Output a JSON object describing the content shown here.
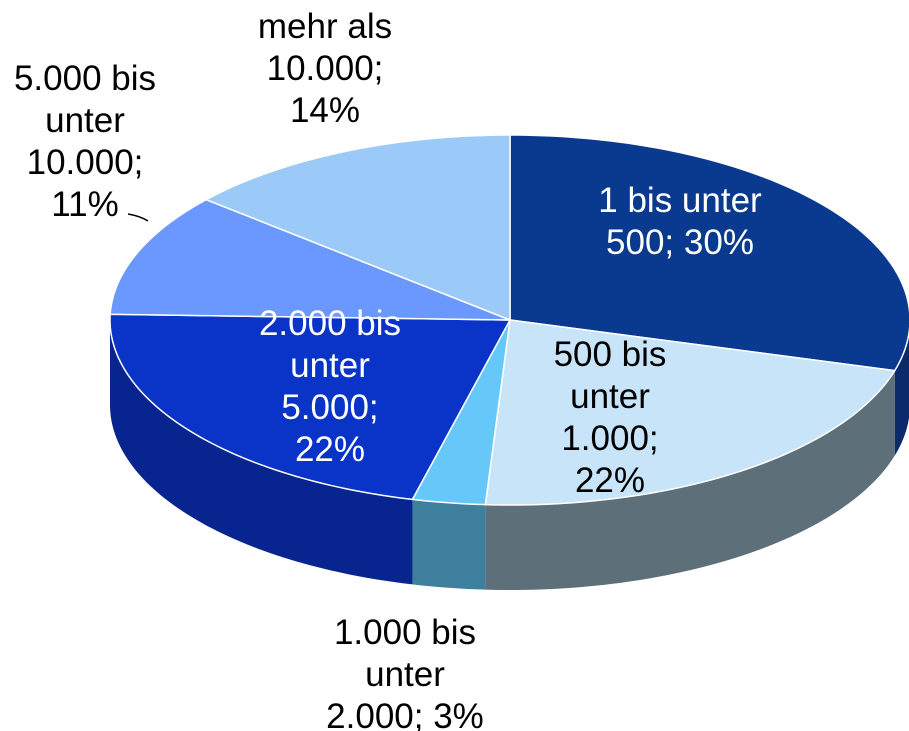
{
  "chart_data": {
    "type": "pie3d",
    "categories": [
      "1 bis unter 500;",
      "500 bis unter 1.000;",
      "1.000 bis unter 2.000;",
      "2.000 bis unter 5.000;",
      "5.000 bis unter 10.000;",
      "mehr als 10.000;"
    ],
    "values": [
      30,
      22,
      3,
      22,
      11,
      14
    ],
    "value_labels": [
      "30%",
      "22%",
      "3%",
      "22%",
      "11%",
      "14%"
    ],
    "colors": [
      "#0a3a8f",
      "#c8e4f8",
      "#66c8f8",
      "#0a34c8",
      "#6a98ff",
      "#9ccaf8"
    ],
    "side_colors": [
      "#0a2a6a",
      "#5d6f78",
      "#3d7f9c",
      "#08258f",
      "#4a6ec0",
      "#6f94b8"
    ],
    "label_colors": [
      "#ffffff",
      "#000000",
      "#000000",
      "#ffffff",
      "#000000",
      "#000000"
    ]
  }
}
